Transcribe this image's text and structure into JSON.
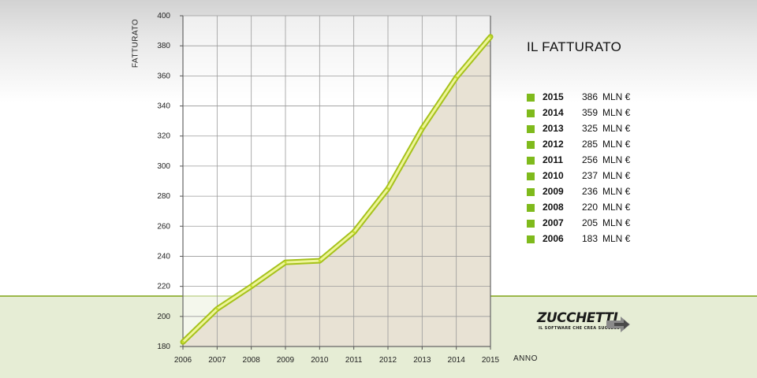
{
  "chart_data": {
    "type": "area",
    "ylabel": "FATTURATO",
    "xlabel": "ANNO",
    "x": [
      2006,
      2007,
      2008,
      2009,
      2010,
      2011,
      2012,
      2013,
      2014,
      2015
    ],
    "values": [
      183,
      205,
      220,
      236,
      237,
      256,
      285,
      325,
      359,
      386
    ],
    "ylim": [
      180,
      400
    ],
    "y_ticks": [
      180,
      200,
      220,
      240,
      260,
      280,
      300,
      320,
      340,
      360,
      380,
      400
    ],
    "grid": true,
    "line_color": "#c8e02a",
    "fill_color": "#e8e2d4"
  },
  "panel": {
    "title": "IL FATTURATO",
    "unit": "MLN €",
    "marker_color": "#7fba1c",
    "items": [
      {
        "year": "2015",
        "value": "386"
      },
      {
        "year": "2014",
        "value": "359"
      },
      {
        "year": "2013",
        "value": "325"
      },
      {
        "year": "2012",
        "value": "285"
      },
      {
        "year": "2011",
        "value": "256"
      },
      {
        "year": "2010",
        "value": "237"
      },
      {
        "year": "2009",
        "value": "236"
      },
      {
        "year": "2008",
        "value": "220"
      },
      {
        "year": "2007",
        "value": "205"
      },
      {
        "year": "2006",
        "value": "183"
      }
    ]
  },
  "logo": {
    "name": "ZUCCHETTI",
    "tagline": "IL SOFTWARE CHE CREA SUCCESSO"
  }
}
